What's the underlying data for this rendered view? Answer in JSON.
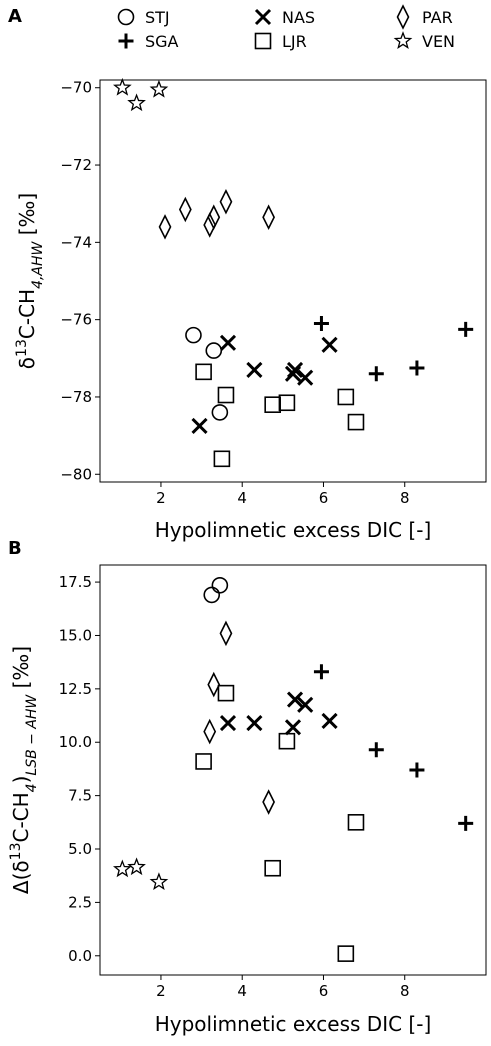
{
  "legend": {
    "entries": [
      {
        "label": "STJ",
        "marker": "circle"
      },
      {
        "label": "SGA",
        "marker": "plus"
      },
      {
        "label": "NAS",
        "marker": "x"
      },
      {
        "label": "LJR",
        "marker": "square"
      },
      {
        "label": "PAR",
        "marker": "diamond"
      },
      {
        "label": "VEN",
        "marker": "star"
      }
    ]
  },
  "chart_data": [
    {
      "panel_label": "A",
      "type": "scatter",
      "xlabel": "Hypolimnetic excess DIC [-]",
      "ylabel_parts": {
        "pre": "δ",
        "sup": "13",
        "mid": "C-CH",
        "sub": "4,AHW",
        "post": " [‰]"
      },
      "xlim": [
        0.5,
        10.0
      ],
      "ylim": [
        -80.2,
        -69.8
      ],
      "xticks": [
        2,
        4,
        6,
        8
      ],
      "yticks": [
        -80,
        -78,
        -76,
        -74,
        -72,
        -70
      ],
      "grid": false,
      "series": [
        {
          "name": "STJ",
          "marker": "circle",
          "points": [
            [
              2.8,
              -76.4
            ],
            [
              3.3,
              -76.8
            ],
            [
              3.45,
              -78.4
            ]
          ]
        },
        {
          "name": "SGA",
          "marker": "plus",
          "points": [
            [
              5.95,
              -76.1
            ],
            [
              7.3,
              -77.4
            ],
            [
              8.3,
              -77.25
            ],
            [
              9.5,
              -76.25
            ]
          ]
        },
        {
          "name": "NAS",
          "marker": "x",
          "points": [
            [
              2.95,
              -78.75
            ],
            [
              3.65,
              -76.6
            ],
            [
              4.3,
              -77.3
            ],
            [
              5.25,
              -77.4
            ],
            [
              5.3,
              -77.3
            ],
            [
              5.55,
              -77.5
            ],
            [
              6.15,
              -76.65
            ]
          ]
        },
        {
          "name": "LJR",
          "marker": "square",
          "points": [
            [
              3.05,
              -77.35
            ],
            [
              3.5,
              -79.6
            ],
            [
              3.6,
              -77.95
            ],
            [
              4.75,
              -78.2
            ],
            [
              5.1,
              -78.15
            ],
            [
              6.55,
              -78.0
            ],
            [
              6.8,
              -78.65
            ]
          ]
        },
        {
          "name": "PAR",
          "marker": "diamond",
          "points": [
            [
              2.1,
              -73.6
            ],
            [
              2.6,
              -73.15
            ],
            [
              3.2,
              -73.55
            ],
            [
              3.3,
              -73.35
            ],
            [
              3.6,
              -72.95
            ],
            [
              4.65,
              -73.35
            ]
          ]
        },
        {
          "name": "VEN",
          "marker": "star",
          "points": [
            [
              1.05,
              -70.0
            ],
            [
              1.4,
              -70.4
            ],
            [
              1.95,
              -70.05
            ]
          ]
        }
      ]
    },
    {
      "panel_label": "B",
      "type": "scatter",
      "xlabel": "Hypolimnetic excess DIC [-]",
      "ylabel_parts": {
        "pre": "Δ(δ",
        "sup": "13",
        "mid": "C-CH",
        "sub": "4",
        "mid2": ")",
        "sub2": "LSB − AHW",
        "post": " [‰]"
      },
      "xlim": [
        0.5,
        10.0
      ],
      "ylim": [
        -0.9,
        18.3
      ],
      "xticks": [
        2,
        4,
        6,
        8
      ],
      "yticks": [
        0.0,
        2.5,
        5.0,
        7.5,
        10.0,
        12.5,
        15.0,
        17.5
      ],
      "ytick_labels": [
        "0.0",
        "2.5",
        "5.0",
        "7.5",
        "10.0",
        "12.5",
        "15.0",
        "17.5"
      ],
      "grid": false,
      "series": [
        {
          "name": "STJ",
          "marker": "circle",
          "points": [
            [
              3.25,
              16.9
            ],
            [
              3.45,
              17.35
            ]
          ]
        },
        {
          "name": "SGA",
          "marker": "plus",
          "points": [
            [
              5.95,
              13.3
            ],
            [
              7.3,
              9.65
            ],
            [
              8.3,
              8.7
            ],
            [
              9.5,
              6.2
            ]
          ]
        },
        {
          "name": "NAS",
          "marker": "x",
          "points": [
            [
              3.65,
              10.9
            ],
            [
              4.3,
              10.9
            ],
            [
              5.25,
              10.7
            ],
            [
              5.3,
              12.0
            ],
            [
              5.55,
              11.75
            ],
            [
              6.15,
              11.0
            ]
          ]
        },
        {
          "name": "LJR",
          "marker": "square",
          "points": [
            [
              3.05,
              9.1
            ],
            [
              3.6,
              12.3
            ],
            [
              4.75,
              4.1
            ],
            [
              5.1,
              10.05
            ],
            [
              6.55,
              0.1
            ],
            [
              6.8,
              6.25
            ]
          ]
        },
        {
          "name": "PAR",
          "marker": "diamond",
          "points": [
            [
              3.2,
              10.5
            ],
            [
              3.3,
              12.7
            ],
            [
              3.6,
              15.1
            ],
            [
              4.65,
              7.2
            ]
          ]
        },
        {
          "name": "VEN",
          "marker": "star",
          "points": [
            [
              1.05,
              4.05
            ],
            [
              1.4,
              4.15
            ],
            [
              1.95,
              3.45
            ]
          ]
        }
      ]
    }
  ]
}
